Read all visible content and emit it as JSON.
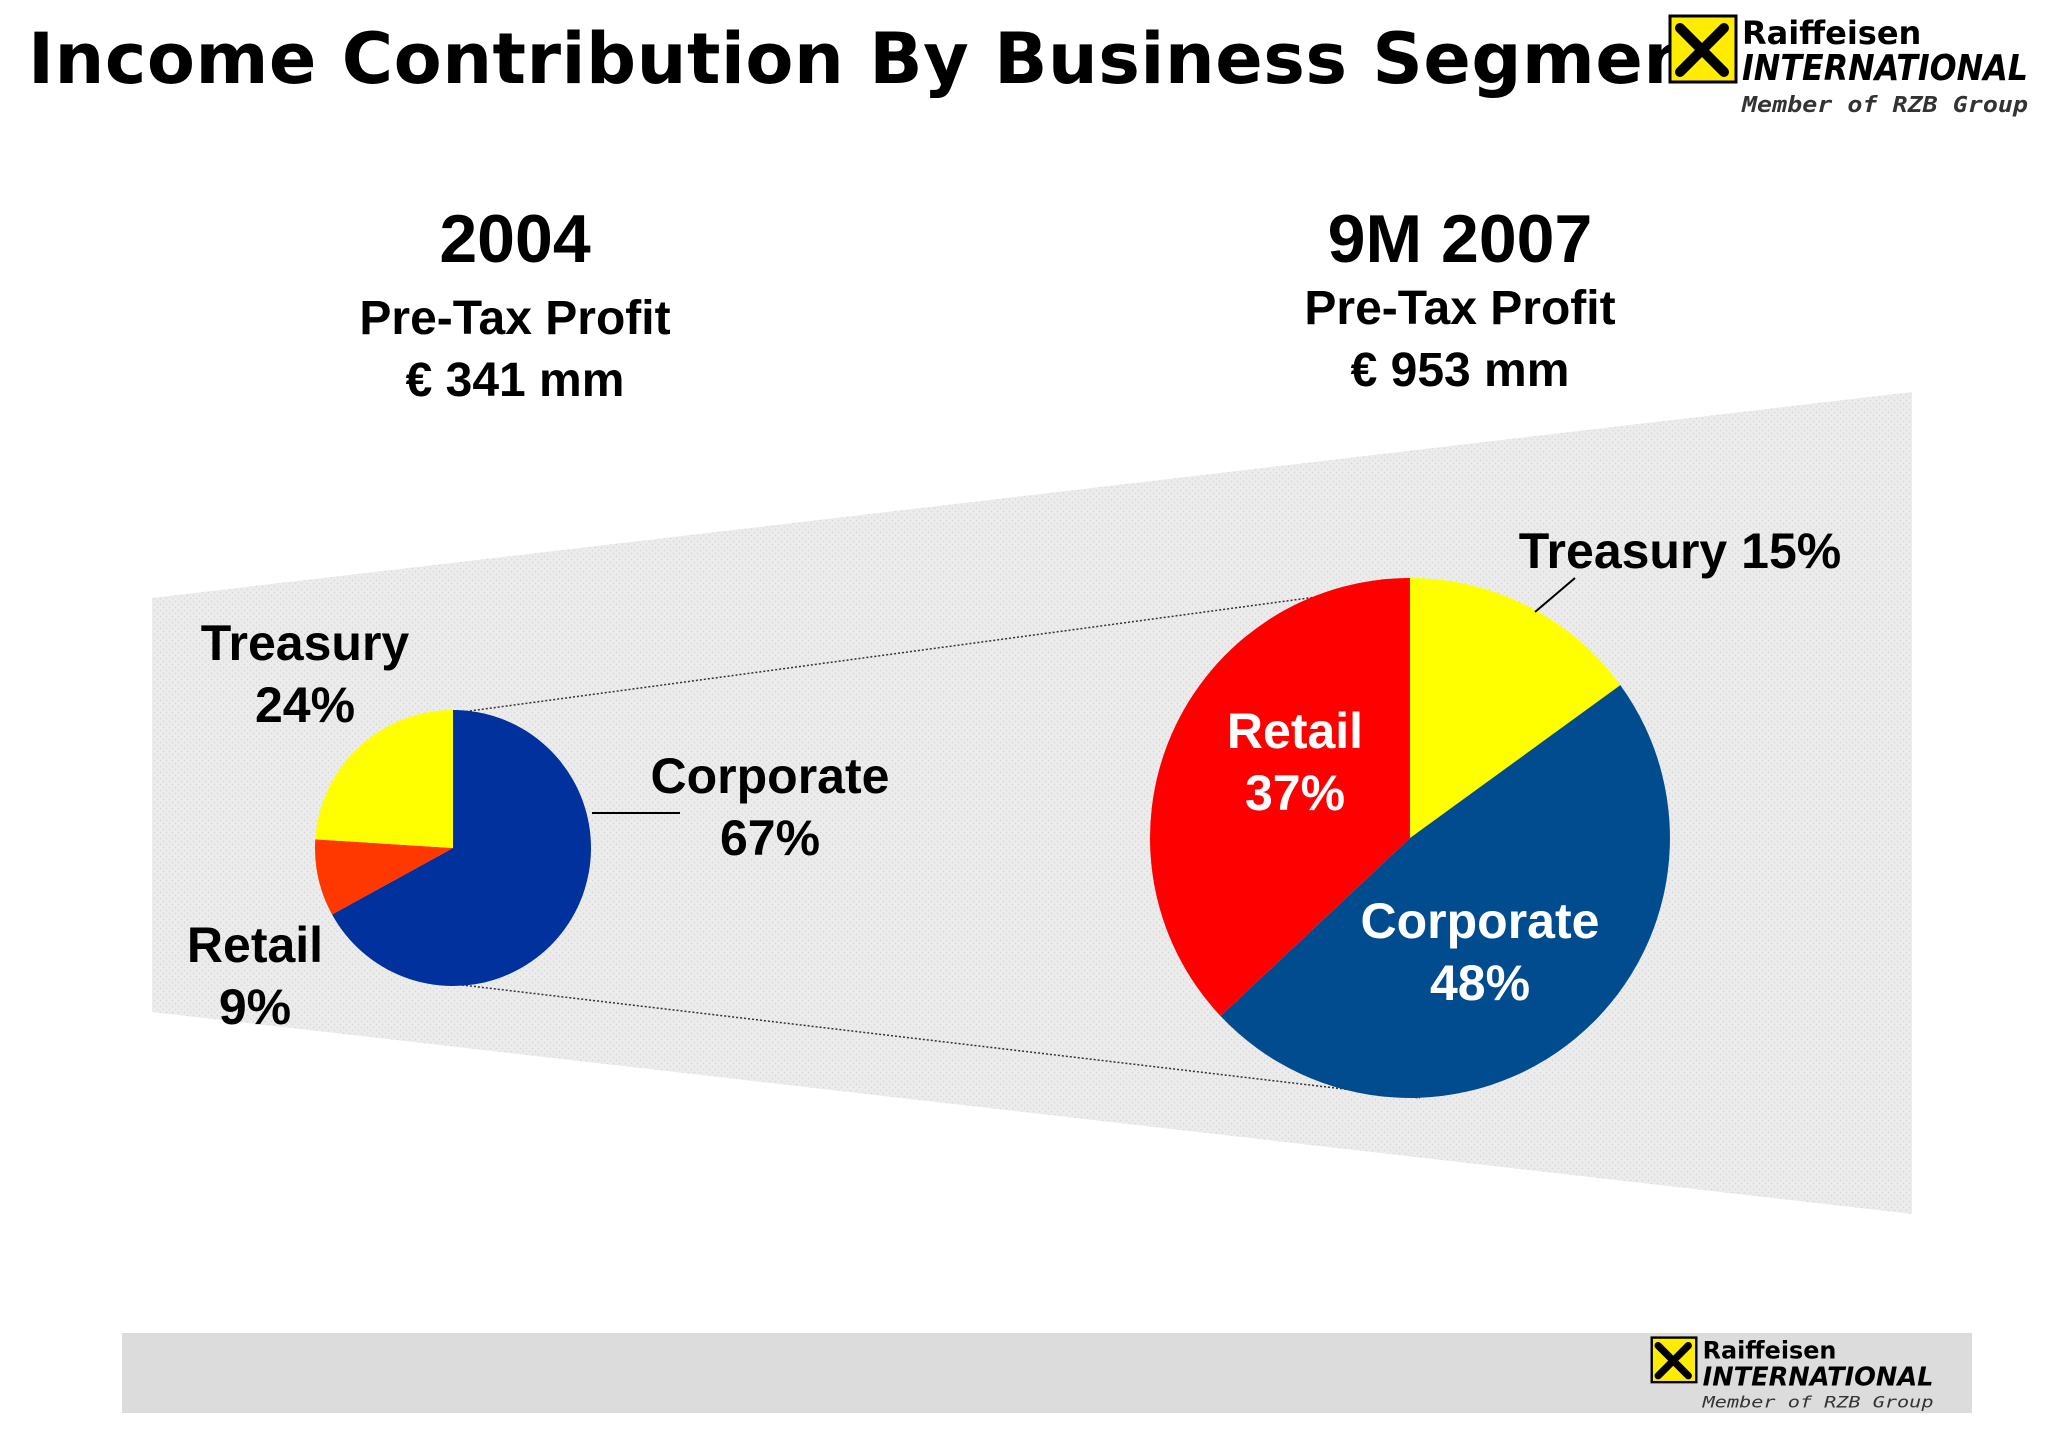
{
  "page_title": "Income Contribution By Business Segment",
  "logo": {
    "line1": "Raiffeisen",
    "line2": "INTERNATIONAL",
    "line3": "Member of RZB Group",
    "icon": "raiffeisen-gable-cross-icon"
  },
  "colors": {
    "corporate_2004": "#00319c",
    "corporate_2007": "#004c8f",
    "retail_2004": "#ff3800",
    "retail_2007": "#ff0000",
    "treasury": "#ffff00",
    "band": "#e9e9e9",
    "footer": "#dcdcdc"
  },
  "chart_data": [
    {
      "type": "pie",
      "title": "2004",
      "subtitle": [
        "Pre-Tax Profit",
        "€ 341 mm"
      ],
      "labels": [
        "Corporate",
        "Retail",
        "Treasury"
      ],
      "values": [
        67,
        9,
        24
      ],
      "value_labels": [
        "67%",
        "9%",
        "24%"
      ]
    },
    {
      "type": "pie",
      "title": "9M 2007",
      "subtitle": [
        "Pre-Tax Profit",
        "€ 953 mm"
      ],
      "labels": [
        "Corporate",
        "Retail",
        "Treasury"
      ],
      "values": [
        48,
        37,
        15
      ],
      "value_labels": [
        "48%",
        "37%",
        "15%"
      ]
    }
  ]
}
